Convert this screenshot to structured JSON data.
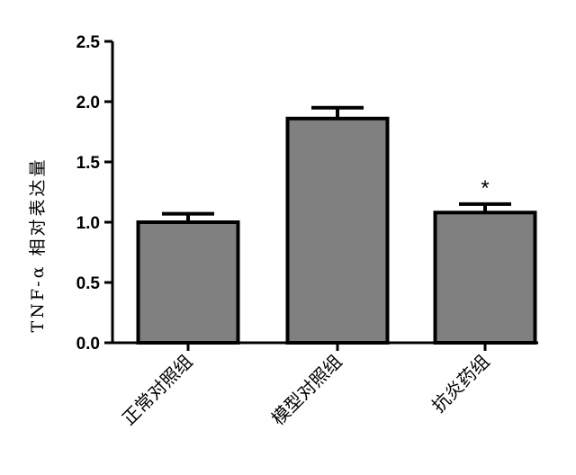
{
  "chart_data": {
    "type": "bar",
    "categories": [
      "正常对照组",
      "模型对照组",
      "抗炎药组"
    ],
    "values": [
      1.0,
      1.86,
      1.08
    ],
    "errors": [
      0.07,
      0.09,
      0.07
    ],
    "annotations": [
      "",
      "",
      "*"
    ],
    "ylabel": "TNF-α 相对表达量",
    "xlabel": "",
    "ylim": [
      0,
      2.5
    ],
    "yticks": [
      0.0,
      0.5,
      1.0,
      1.5,
      2.0,
      2.5
    ],
    "ytick_labels": [
      "0.0",
      "0.5",
      "1.0",
      "1.5",
      "2.0",
      "2.5"
    ],
    "bar_color": "#808080",
    "edge_color": "#000000",
    "grid": false,
    "legend": "none"
  }
}
